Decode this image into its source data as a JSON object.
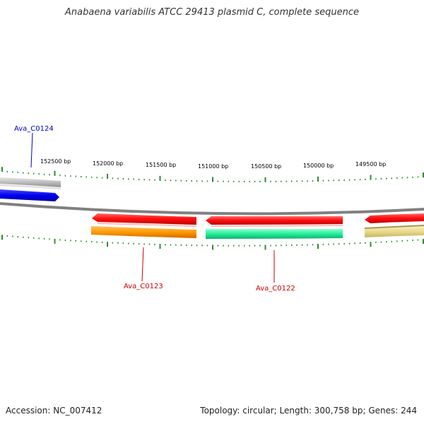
{
  "title": "Anabaena variabilis ATCC 29413 plasmid C, complete sequence",
  "footer": {
    "accession": "Accession: NC_007412",
    "summary": "Topology: circular; Length: 300,758 bp; Genes: 244"
  },
  "scale_labels": [
    "152500 bp",
    "152000 bp",
    "151500 bp",
    "151000 bp",
    "150500 bp",
    "150000 bp",
    "149500 bp"
  ],
  "gene_labels": [
    {
      "text": "Ava_C0124",
      "color": "#0000cc"
    },
    {
      "text": "Ava_C0123",
      "color": "#cc0000"
    },
    {
      "text": "Ava_C0122",
      "color": "#cc0000"
    }
  ],
  "colors": {
    "backbone": "#808080",
    "tick": "#2e8b2e",
    "red_feature": "#ff1a1a",
    "orange_feature": "#ff9900",
    "green_feature": "#22ee99",
    "blue_feature": "#0000ee",
    "grey_feature": "#bbbbbb",
    "khaki_feature": "#e8d98a"
  }
}
